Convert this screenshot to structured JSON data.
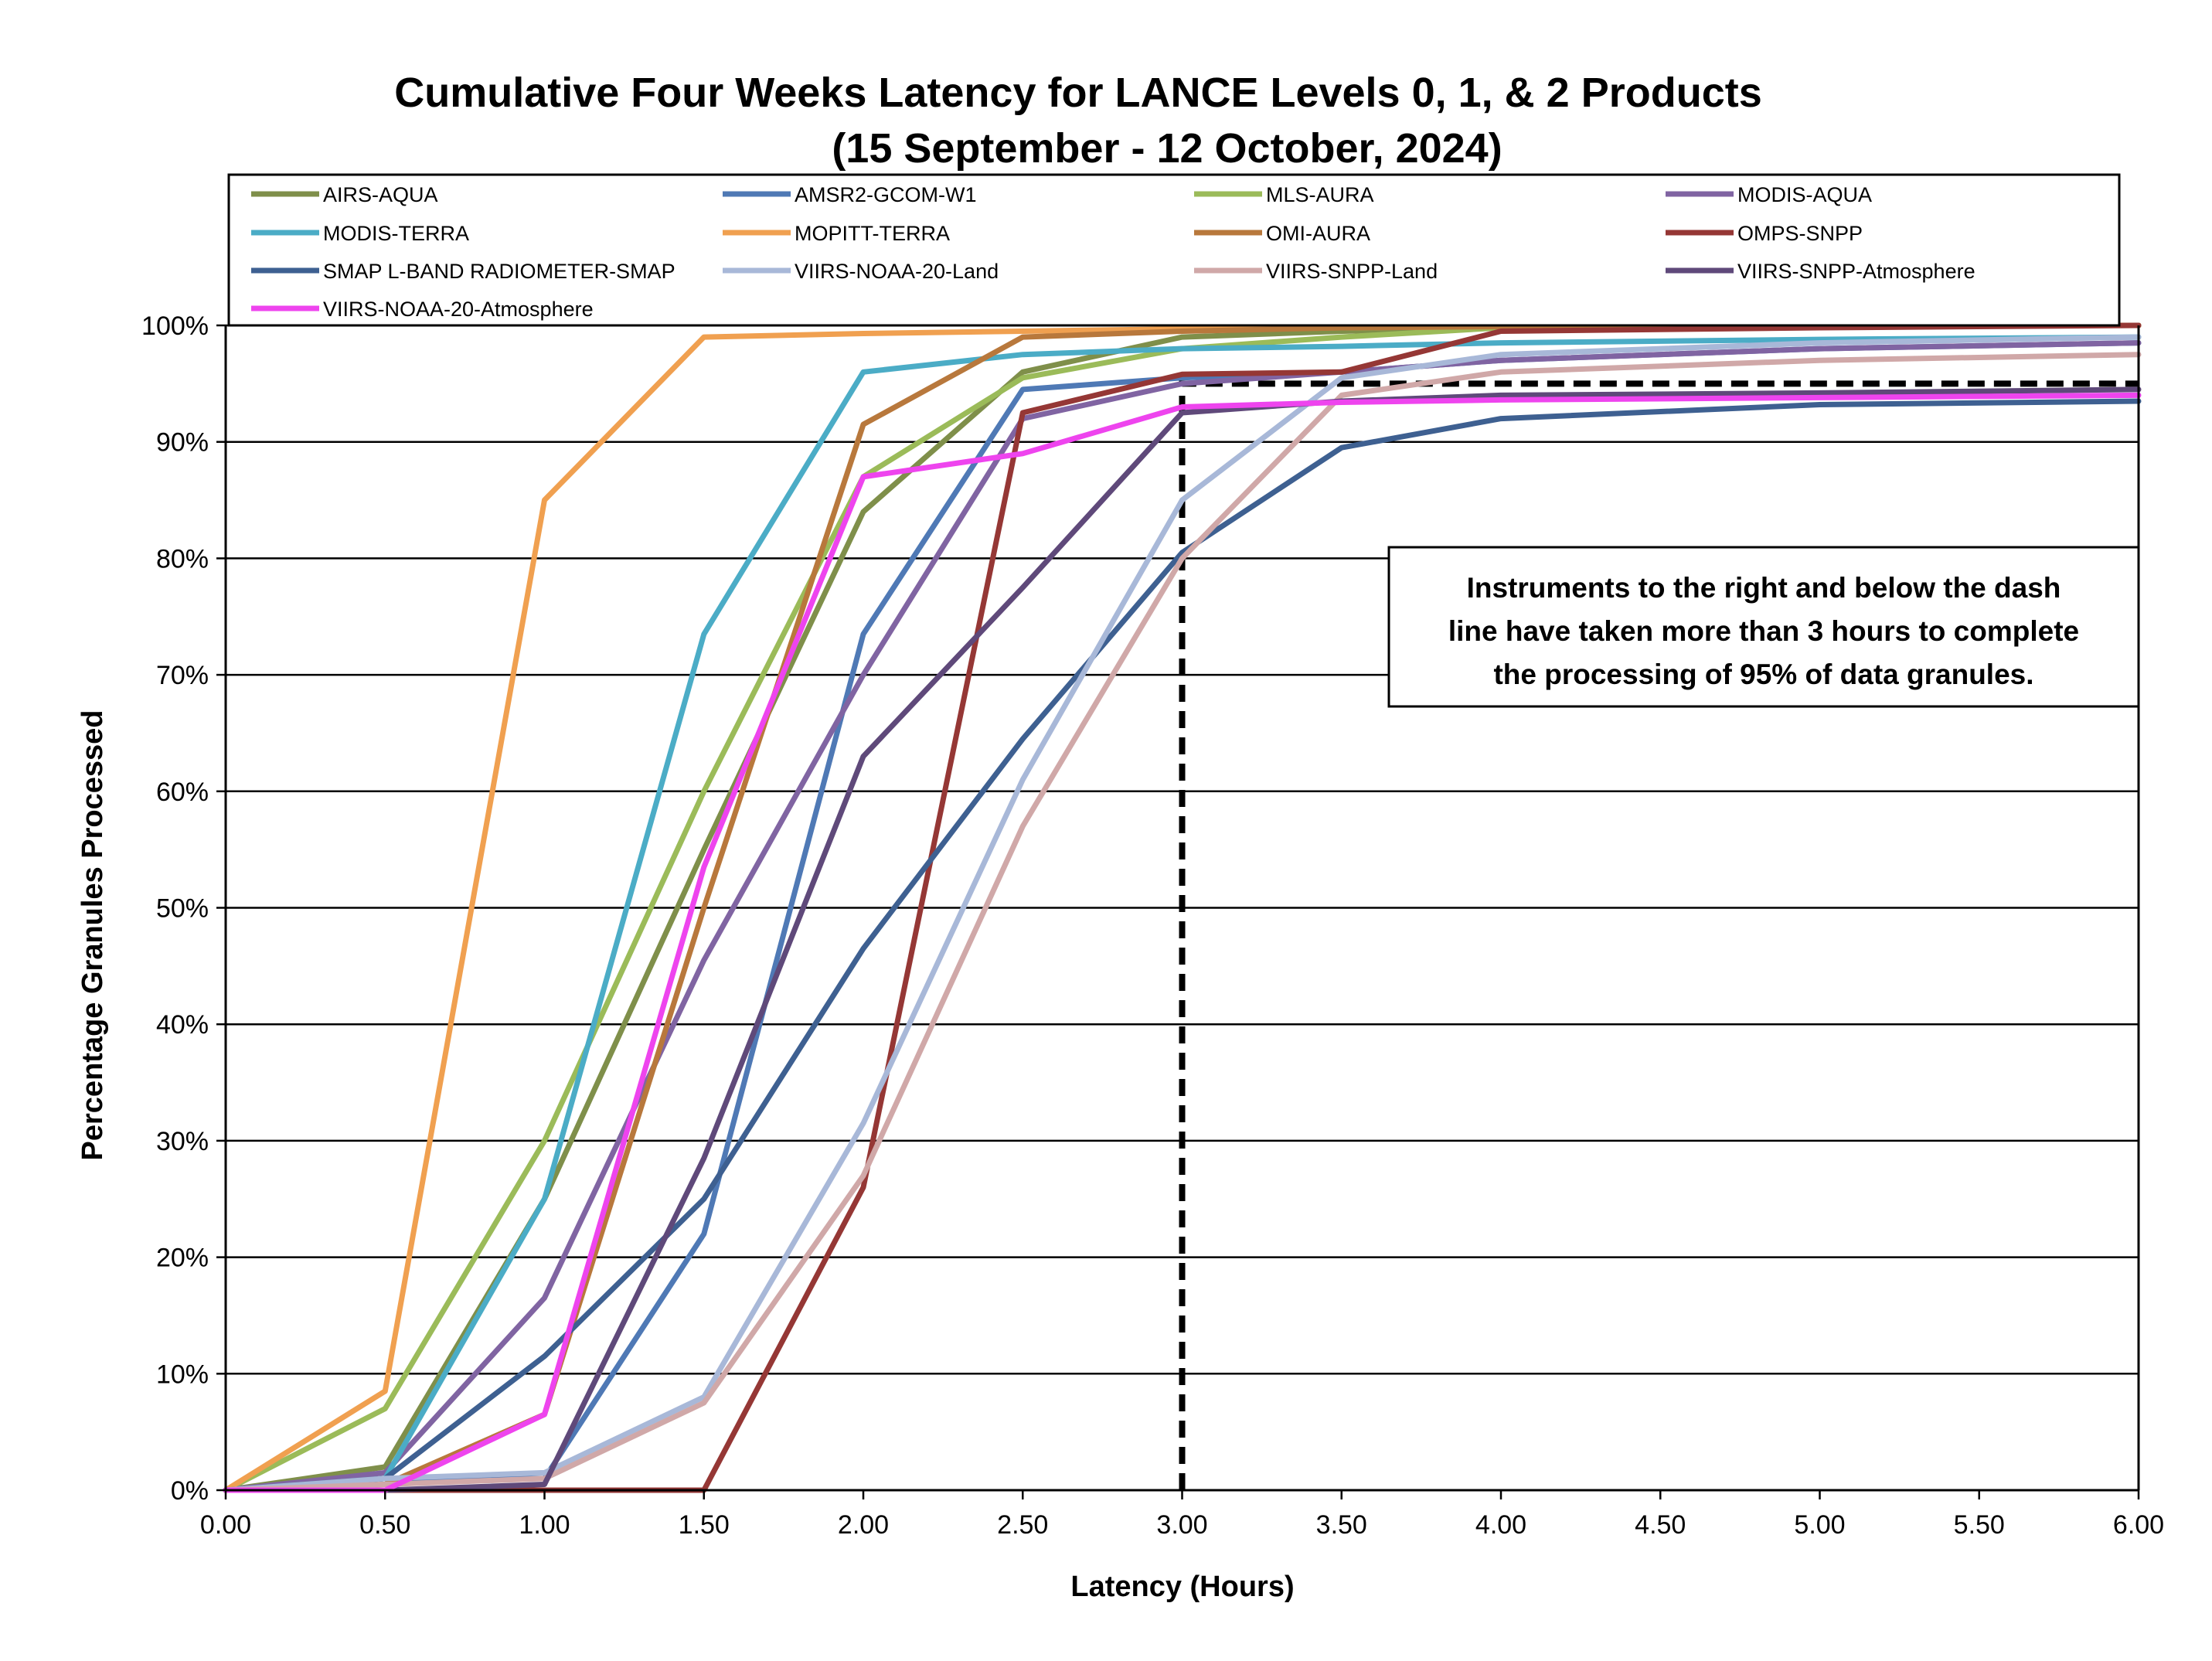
{
  "chart_data": {
    "type": "line",
    "title": "Cumulative Four Weeks Latency  for LANCE Levels 0, 1, & 2 Products",
    "subtitle": "(15  September   -  12  October,  2024)",
    "xlabel": "Latency (Hours)",
    "ylabel": "Percentage Granules Processed",
    "xlim": [
      0,
      6
    ],
    "ylim": [
      0,
      100
    ],
    "x_ticks": [
      "0.00",
      "0.50",
      "1.00",
      "1.50",
      "2.00",
      "2.50",
      "3.00",
      "3.50",
      "4.00",
      "4.50",
      "5.00",
      "5.50",
      "6.00"
    ],
    "y_ticks": [
      "0%",
      "10%",
      "20%",
      "30%",
      "40%",
      "50%",
      "60%",
      "70%",
      "80%",
      "90%",
      "100%"
    ],
    "grid": true,
    "legend_position": "top",
    "x": [
      0,
      0.5,
      1,
      1.5,
      2,
      2.5,
      3,
      3.5,
      4,
      5,
      6
    ],
    "series": [
      {
        "name": "AIRS-AQUA",
        "color": "#7F8F4A",
        "values": [
          0,
          2,
          25,
          55,
          84,
          96,
          99,
          99.5,
          99.8,
          100,
          100
        ]
      },
      {
        "name": "AMSR2-GCOM-W1",
        "color": "#4F79B5",
        "values": [
          0,
          1,
          1,
          22,
          73.5,
          94.5,
          95.5,
          96,
          97,
          98,
          98.5
        ]
      },
      {
        "name": "MLS-AURA",
        "color": "#9BBB59",
        "values": [
          0,
          7,
          30,
          60,
          87,
          95.5,
          98,
          99,
          99.8,
          100,
          100
        ]
      },
      {
        "name": "MODIS-AQUA",
        "color": "#8064A2",
        "values": [
          0,
          1.5,
          16.5,
          45.5,
          70,
          92,
          95,
          96,
          97,
          98,
          98.5
        ]
      },
      {
        "name": "MODIS-TERRA",
        "color": "#4BACC6",
        "values": [
          0,
          1,
          25,
          73.5,
          96,
          97.5,
          98,
          98.2,
          98.5,
          98.8,
          99
        ]
      },
      {
        "name": "MOPITT-TERRA",
        "color": "#F0A050",
        "values": [
          0,
          8.5,
          85,
          99,
          99.3,
          99.5,
          99.7,
          99.8,
          99.9,
          100,
          100
        ]
      },
      {
        "name": "OMI-AURA",
        "color": "#B8783C",
        "values": [
          0,
          0.5,
          6.5,
          50,
          91.5,
          99,
          99.5,
          99.8,
          99.9,
          100,
          100
        ]
      },
      {
        "name": "OMPS-SNPP",
        "color": "#953735",
        "values": [
          0,
          0,
          0,
          0,
          26,
          92.5,
          95.8,
          96,
          99.5,
          99.8,
          100
        ]
      },
      {
        "name": "SMAP L-BAND RADIOMETER-SMAP",
        "color": "#3E6091",
        "values": [
          0,
          1,
          11.5,
          25,
          46.5,
          64.5,
          80.5,
          89.5,
          92,
          93.2,
          93.5
        ]
      },
      {
        "name": "VIIRS-NOAA-20-Land",
        "color": "#A8B8D8",
        "values": [
          0,
          1,
          1.5,
          8,
          31.5,
          61,
          85,
          95.5,
          97.5,
          98.5,
          99
        ]
      },
      {
        "name": "VIIRS-SNPP-Land",
        "color": "#D0A8A8",
        "values": [
          0,
          0.5,
          1,
          7.5,
          27,
          57,
          80,
          94,
          96,
          97,
          97.5
        ]
      },
      {
        "name": "VIIRS-SNPP-Atmosphere",
        "color": "#5F497A",
        "values": [
          0,
          0,
          0.5,
          28.5,
          63,
          77.5,
          92.5,
          93.5,
          94,
          94.2,
          94.5
        ]
      },
      {
        "name": "VIIRS-NOAA-20-Atmosphere",
        "color": "#EE44EE",
        "values": [
          0,
          0,
          6.5,
          53.5,
          87,
          89,
          93,
          93.4,
          93.6,
          93.8,
          94
        ]
      }
    ],
    "threshold": {
      "x": 3,
      "y": 95,
      "style": "dashed"
    },
    "annotation": {
      "lines": [
        "Instruments to the right and below the dash",
        "line have taken more than 3 hours to complete",
        "the processing of 95% of data granules."
      ]
    }
  }
}
